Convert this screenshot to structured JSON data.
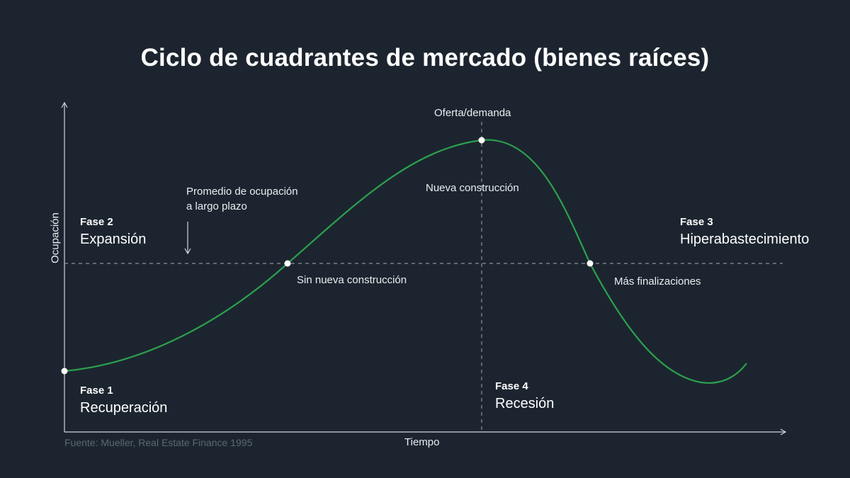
{
  "title": "Ciclo de cuadrantes de mercado (bienes raíces)",
  "axes": {
    "x_label": "Tiempo",
    "y_label": "Ocupación"
  },
  "annotations": {
    "average": {
      "line1": "Promedio de ocupación",
      "line2": "a largo plazo"
    },
    "peak_top": "Oferta/demanda",
    "peak_below": "Nueva construcción",
    "cross_up": "Sin nueva construcción",
    "cross_down": "Más finalizaciones"
  },
  "phases": [
    {
      "num": "Fase 1",
      "name": "Recuperación"
    },
    {
      "num": "Fase 2",
      "name": "Expansión"
    },
    {
      "num": "Fase 3",
      "name": "Hiperabastecimiento"
    },
    {
      "num": "Fase 4",
      "name": "Recesión"
    }
  ],
  "source": "Fuente: Mueller, Real Estate Finance 1995",
  "colors": {
    "background": "#1c252f",
    "curve": "#2ca04f",
    "axis": "#cfd5db",
    "dashed": "#8a939c",
    "marker": "#ffffff"
  }
}
